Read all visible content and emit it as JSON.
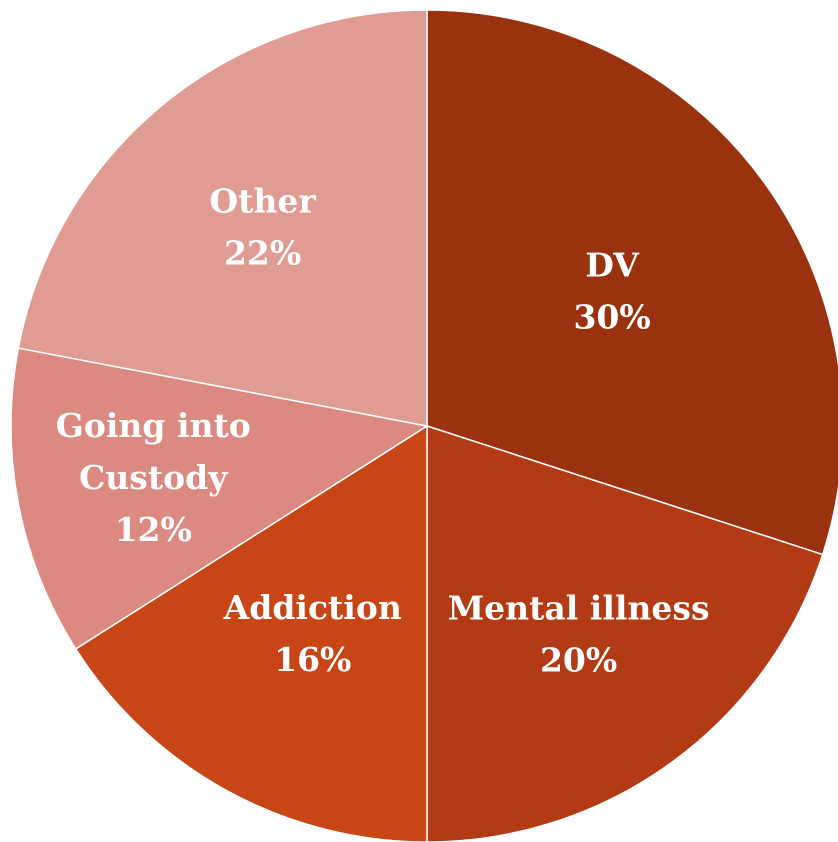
{
  "chart_data": {
    "type": "pie",
    "categories": [
      "DV",
      "Mental illness",
      "Addiction",
      "Going into Custody",
      "Other"
    ],
    "values": [
      30,
      20,
      16,
      12,
      22
    ],
    "labels": [
      {
        "lines": [
          "DV"
        ],
        "pct": "30%"
      },
      {
        "lines": [
          "Mental illness"
        ],
        "pct": "20%"
      },
      {
        "lines": [
          "Addiction"
        ],
        "pct": "16%"
      },
      {
        "lines": [
          "Going into",
          "Custody"
        ],
        "pct": "12%"
      },
      {
        "lines": [
          "Other"
        ],
        "pct": "22%"
      }
    ],
    "colors": [
      "#9a320f",
      "#b23a14",
      "#c84615",
      "#dc8a81",
      "#e09b93"
    ],
    "start_angle_deg": 0,
    "direction": "clockwise"
  }
}
